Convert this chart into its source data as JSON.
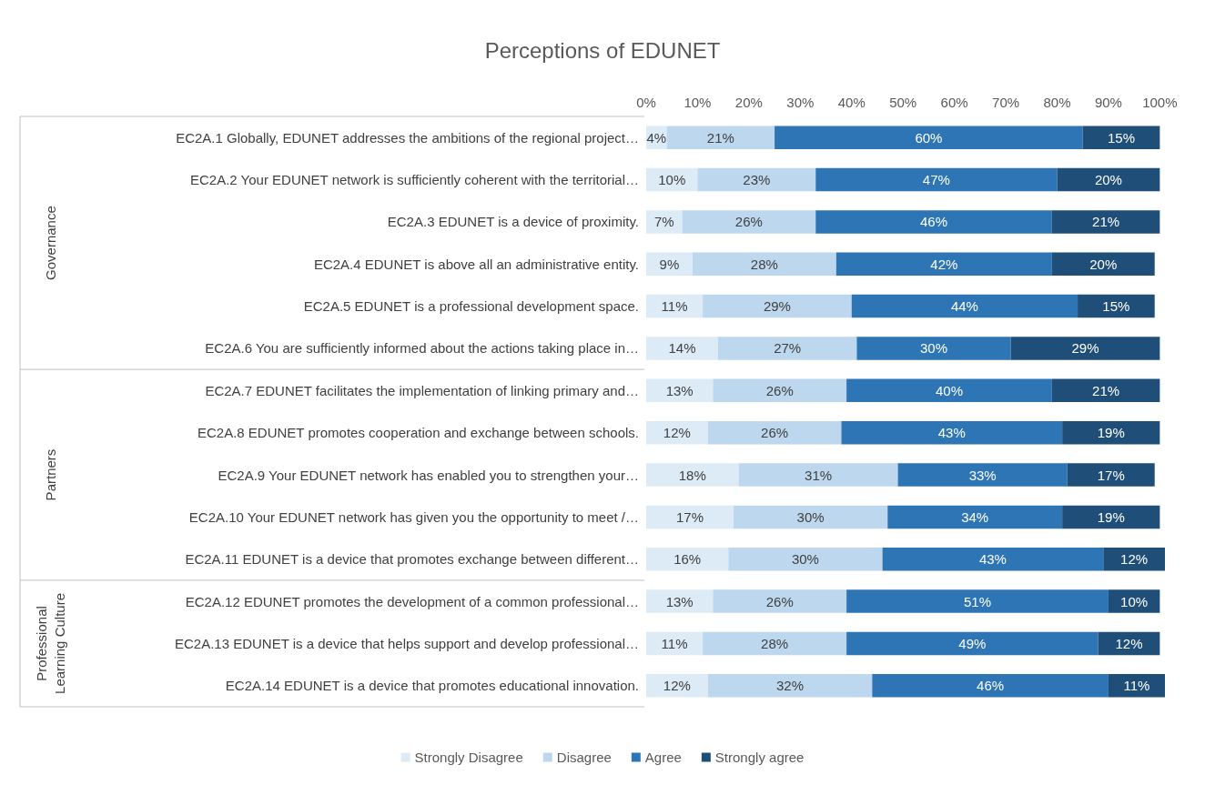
{
  "chart_data": {
    "type": "bar",
    "orientation": "horizontal",
    "stacked": true,
    "title": "Perceptions of EDUNET",
    "categories": [
      "EC2A.1 Globally, EDUNET addresses the ambitions of the regional project…",
      "EC2A.2 Your EDUNET network is sufficiently coherent with the territorial…",
      "EC2A.3 EDUNET is a device of proximity.",
      "EC2A.4 EDUNET is above all an administrative entity.",
      "EC2A.5 EDUNET is a professional development space.",
      "EC2A.6 You are sufficiently informed about the actions taking place in…",
      "EC2A.7 EDUNET facilitates the implementation of linking primary and…",
      "EC2A.8 EDUNET promotes cooperation and exchange between schools.",
      "EC2A.9 Your EDUNET network has enabled you to strengthen your…",
      "EC2A.10 Your EDUNET network has given you the opportunity to meet /…",
      "EC2A.11 EDUNET is a device that promotes exchange between different…",
      "EC2A.12 EDUNET promotes the development of a common professional…",
      "EC2A.13 EDUNET is a device that helps support and develop professional…",
      "EC2A.14 EDUNET is a device that promotes educational innovation."
    ],
    "series": [
      {
        "name": "Strongly Disagree",
        "color": "#ddebf7",
        "values": [
          4,
          10,
          7,
          9,
          11,
          14,
          13,
          12,
          18,
          17,
          16,
          13,
          11,
          12
        ],
        "value_labels": [
          "4%",
          "10%",
          "7%",
          "9%",
          "11%",
          "14%",
          "13%",
          "12%",
          "18%",
          "17%",
          "16%",
          "13%",
          "11%",
          "12%"
        ]
      },
      {
        "name": "Disagree",
        "color": "#bdd7ee",
        "values": [
          21,
          23,
          26,
          28,
          29,
          27,
          26,
          26,
          31,
          30,
          30,
          26,
          28,
          32
        ],
        "value_labels": [
          "21%",
          "23%",
          "26%",
          "28%",
          "29%",
          "27%",
          "26%",
          "26%",
          "31%",
          "30%",
          "30%",
          "26%",
          "28%",
          "32%"
        ]
      },
      {
        "name": "Agree",
        "color": "#2e75b6",
        "values": [
          60,
          47,
          46,
          42,
          44,
          30,
          40,
          43,
          33,
          34,
          43,
          51,
          49,
          46
        ],
        "value_labels": [
          "60%",
          "47%",
          "46%",
          "42%",
          "44%",
          "30%",
          "40%",
          "43%",
          "33%",
          "34%",
          "43%",
          "51%",
          "49%",
          "46%"
        ]
      },
      {
        "name": "Strongly agree",
        "color": "#1f4e79",
        "values": [
          15,
          20,
          21,
          20,
          15,
          29,
          21,
          19,
          17,
          19,
          12,
          10,
          12,
          11
        ],
        "value_labels": [
          "15%",
          "20%",
          "21%",
          "20%",
          "15%",
          "29%",
          "21%",
          "19%",
          "17%",
          "19%",
          "12%",
          "10%",
          "12%",
          "11%"
        ]
      }
    ],
    "xlim": [
      0,
      101
    ],
    "xticks": [
      {
        "value": 0,
        "label": "0%"
      },
      {
        "value": 10,
        "label": "10%"
      },
      {
        "value": 20,
        "label": "20%"
      },
      {
        "value": 30,
        "label": "30%"
      },
      {
        "value": 40,
        "label": "40%"
      },
      {
        "value": 50,
        "label": "50%"
      },
      {
        "value": 60,
        "label": "60%"
      },
      {
        "value": 70,
        "label": "70%"
      },
      {
        "value": 80,
        "label": "80%"
      },
      {
        "value": 90,
        "label": "90%"
      },
      {
        "value": 100,
        "label": "100%"
      }
    ],
    "annotations": [
      "Governance",
      "Partners",
      "Professional Learning Culture"
    ],
    "grid": false,
    "legend": "bottom"
  }
}
